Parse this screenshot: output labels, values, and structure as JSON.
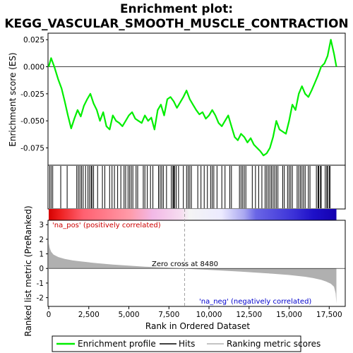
{
  "title_line1": "Enrichment plot:",
  "title_line2": "KEGG_VASCULAR_SMOOTH_MUSCLE_CONTRACTION",
  "colors": {
    "es_line": "#00ee00",
    "hits": "#000000",
    "metric_fill": "#b0b0b0",
    "pos_label": "#cc0000",
    "neg_label": "#0000cc",
    "zero_line": "#a0a0a0"
  },
  "chart_data": [
    {
      "type": "line",
      "name": "enrichment-profile",
      "ylabel": "Enrichment score (ES)",
      "xlim": [
        0,
        18500
      ],
      "ylim": [
        -0.091,
        0.031
      ],
      "yticks": [
        0.025,
        0.0,
        -0.025,
        -0.05,
        -0.075
      ],
      "ytick_labels": [
        "0.025",
        "0.000",
        "-0.025",
        "-0.050",
        "-0.075"
      ],
      "x": [
        0,
        150,
        350,
        600,
        800,
        1000,
        1200,
        1400,
        1600,
        1800,
        2000,
        2200,
        2400,
        2600,
        2800,
        3000,
        3200,
        3400,
        3600,
        3800,
        4000,
        4200,
        4400,
        4600,
        4800,
        5000,
        5200,
        5400,
        5600,
        5800,
        6000,
        6200,
        6400,
        6600,
        6800,
        7000,
        7200,
        7400,
        7600,
        7800,
        8000,
        8200,
        8400,
        8600,
        8800,
        9000,
        9200,
        9400,
        9600,
        9800,
        10000,
        10200,
        10400,
        10600,
        10800,
        11000,
        11200,
        11400,
        11600,
        11800,
        12000,
        12200,
        12400,
        12600,
        12800,
        13000,
        13200,
        13400,
        13600,
        13800,
        14000,
        14200,
        14400,
        14600,
        14800,
        15000,
        15200,
        15400,
        15600,
        15800,
        16000,
        16200,
        16400,
        16600,
        16800,
        17000,
        17200,
        17400,
        17600,
        17800,
        17950
      ],
      "y": [
        0.0,
        0.008,
        0.0,
        -0.012,
        -0.02,
        -0.032,
        -0.045,
        -0.057,
        -0.048,
        -0.04,
        -0.046,
        -0.036,
        -0.03,
        -0.025,
        -0.034,
        -0.04,
        -0.05,
        -0.042,
        -0.055,
        -0.058,
        -0.045,
        -0.05,
        -0.052,
        -0.055,
        -0.05,
        -0.045,
        -0.042,
        -0.048,
        -0.05,
        -0.052,
        -0.045,
        -0.05,
        -0.047,
        -0.058,
        -0.04,
        -0.035,
        -0.045,
        -0.03,
        -0.028,
        -0.032,
        -0.038,
        -0.033,
        -0.028,
        -0.022,
        -0.03,
        -0.035,
        -0.04,
        -0.044,
        -0.042,
        -0.048,
        -0.045,
        -0.04,
        -0.045,
        -0.052,
        -0.055,
        -0.05,
        -0.045,
        -0.055,
        -0.065,
        -0.068,
        -0.062,
        -0.065,
        -0.07,
        -0.066,
        -0.072,
        -0.075,
        -0.078,
        -0.082,
        -0.08,
        -0.075,
        -0.065,
        -0.05,
        -0.058,
        -0.06,
        -0.062,
        -0.05,
        -0.035,
        -0.04,
        -0.025,
        -0.018,
        -0.025,
        -0.028,
        -0.022,
        -0.015,
        -0.008,
        0.0,
        0.003,
        0.01,
        0.025,
        0.012,
        0.0
      ]
    },
    {
      "type": "bar",
      "name": "ranked-list-metric",
      "xlabel": "Rank in Ordered Dataset",
      "ylabel": "Ranked list metric (PreRanked)",
      "xlim": [
        0,
        18500
      ],
      "ylim": [
        -2.6,
        3.3
      ],
      "yticks": [
        3,
        2,
        1,
        0,
        -1,
        -2
      ],
      "ytick_labels": [
        "3",
        "2",
        "1",
        "0",
        "-1",
        "-2"
      ],
      "xticks": [
        0,
        2500,
        5000,
        7500,
        10000,
        12500,
        15000,
        17500
      ],
      "xtick_labels": [
        "0",
        "2,500",
        "5,000",
        "7,500",
        "10,000",
        "12,500",
        "15,000",
        "17,500"
      ],
      "x": [
        0,
        60,
        150,
        300,
        600,
        1000,
        1500,
        2000,
        3000,
        4000,
        5000,
        6000,
        7000,
        8000,
        8480,
        9000,
        10000,
        11000,
        12000,
        13000,
        14000,
        15000,
        16000,
        16500,
        17000,
        17300,
        17600,
        17800,
        17900,
        17950
      ],
      "y": [
        1.75,
        1.4,
        1.15,
        0.95,
        0.78,
        0.65,
        0.55,
        0.48,
        0.36,
        0.27,
        0.19,
        0.12,
        0.07,
        0.03,
        0.0,
        -0.04,
        -0.1,
        -0.16,
        -0.22,
        -0.29,
        -0.36,
        -0.45,
        -0.57,
        -0.66,
        -0.78,
        -0.9,
        -1.05,
        -1.25,
        -1.7,
        -2.4
      ]
    }
  ],
  "hits_positions": [
    60,
    150,
    250,
    750,
    1150,
    1750,
    1850,
    1950,
    2050,
    2150,
    2300,
    2450,
    2550,
    2650,
    2700,
    2800,
    3050,
    3350,
    3500,
    3800,
    3950,
    4100,
    4300,
    4500,
    4700,
    4800,
    4950,
    5050,
    5150,
    5250,
    5450,
    5550,
    5900,
    6000,
    6150,
    6350,
    6500,
    6850,
    6950,
    7050,
    7150,
    7350,
    7650,
    7750,
    7800,
    7850,
    7950,
    8100,
    8400,
    8600,
    8700,
    8800,
    8900,
    9300,
    9500,
    9700,
    9900,
    10100,
    10200,
    10300,
    10500,
    10800,
    11000,
    11300,
    11400,
    11900,
    12000,
    12100,
    12200,
    12300,
    12700,
    12900,
    13100,
    13300,
    13500,
    13600,
    13700,
    13800,
    13900,
    14000,
    14100,
    14200,
    14300,
    14600,
    14700,
    14900,
    15000,
    15100,
    15200,
    15500,
    15600,
    15700,
    15800,
    15900,
    16000,
    16200,
    16300,
    16700,
    16800,
    16850,
    16950,
    17000,
    17250,
    17350,
    17400,
    17500,
    17550
  ],
  "rank_band": {
    "stops": [
      {
        "at": 0.0,
        "color": "#d40000"
      },
      {
        "at": 0.04,
        "color": "#ee2020"
      },
      {
        "at": 0.12,
        "color": "#ff6070"
      },
      {
        "at": 0.28,
        "color": "#ff9aa8"
      },
      {
        "at": 0.36,
        "color": "#f2b8e6"
      },
      {
        "at": 0.46,
        "color": "#f6ddf0"
      },
      {
        "at": 0.49,
        "color": "#f4f4f4"
      },
      {
        "at": 0.6,
        "color": "#ecebff"
      },
      {
        "at": 0.68,
        "color": "#a8a6f0"
      },
      {
        "at": 0.72,
        "color": "#6a66e6"
      },
      {
        "at": 0.85,
        "color": "#3c32d8"
      },
      {
        "at": 0.92,
        "color": "#1e10c8"
      },
      {
        "at": 1.0,
        "color": "#1400b0"
      }
    ]
  },
  "annotations": {
    "pos_label": "'na_pos' (positively correlated)",
    "neg_label": "'na_neg' (negatively correlated)",
    "zero_cross": "Zero cross at 8480"
  },
  "legend": {
    "items": [
      {
        "label": "Enrichment profile",
        "swatch": "line-green"
      },
      {
        "label": "Hits",
        "swatch": "line-black"
      },
      {
        "label": "Ranking metric scores",
        "swatch": "line-gray"
      }
    ]
  }
}
